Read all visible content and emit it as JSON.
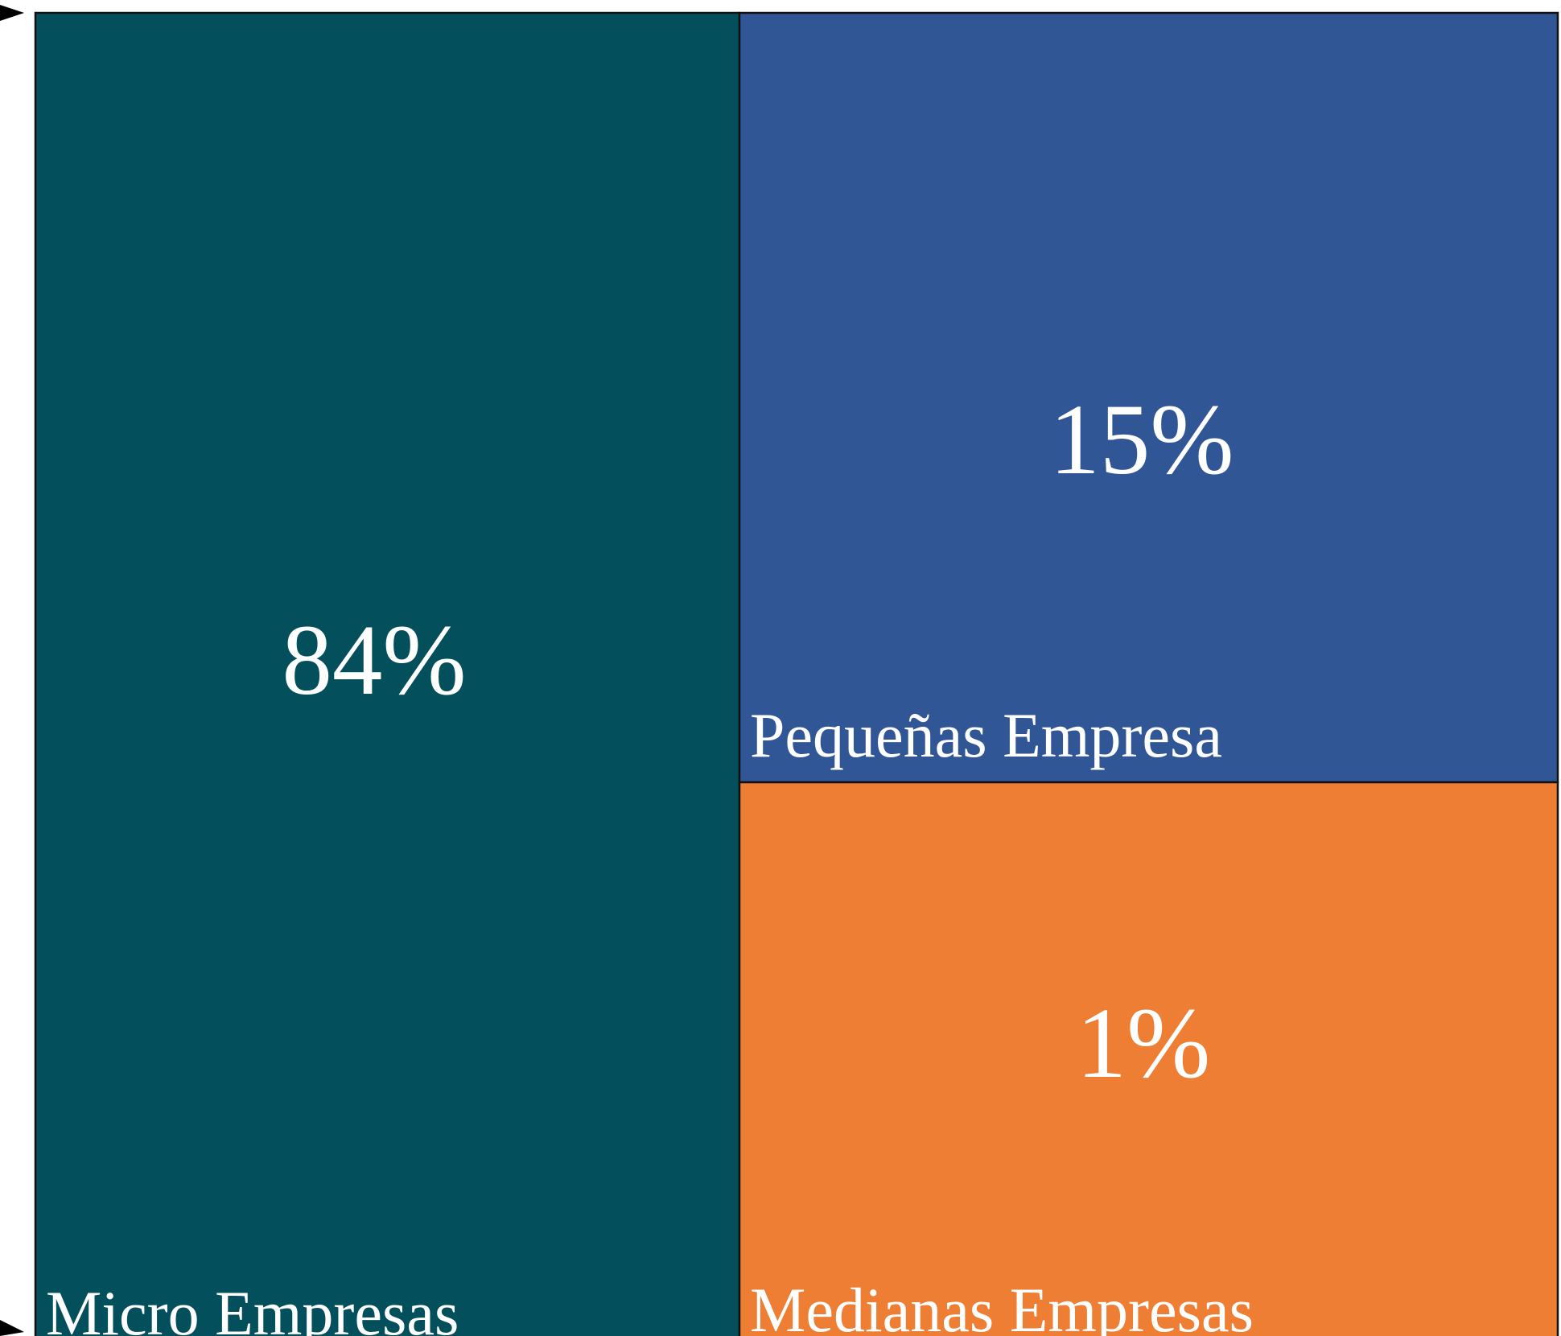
{
  "chart_data": {
    "type": "treemap",
    "categories": [
      "Micro Empresas",
      "Pequeñas Empresa",
      "Medianas Empresas"
    ],
    "values": [
      84,
      15,
      1
    ],
    "value_labels": [
      "84%",
      "15%",
      "1%"
    ],
    "colors": [
      "#03505c",
      "#315696",
      "#ed7e33"
    ]
  }
}
